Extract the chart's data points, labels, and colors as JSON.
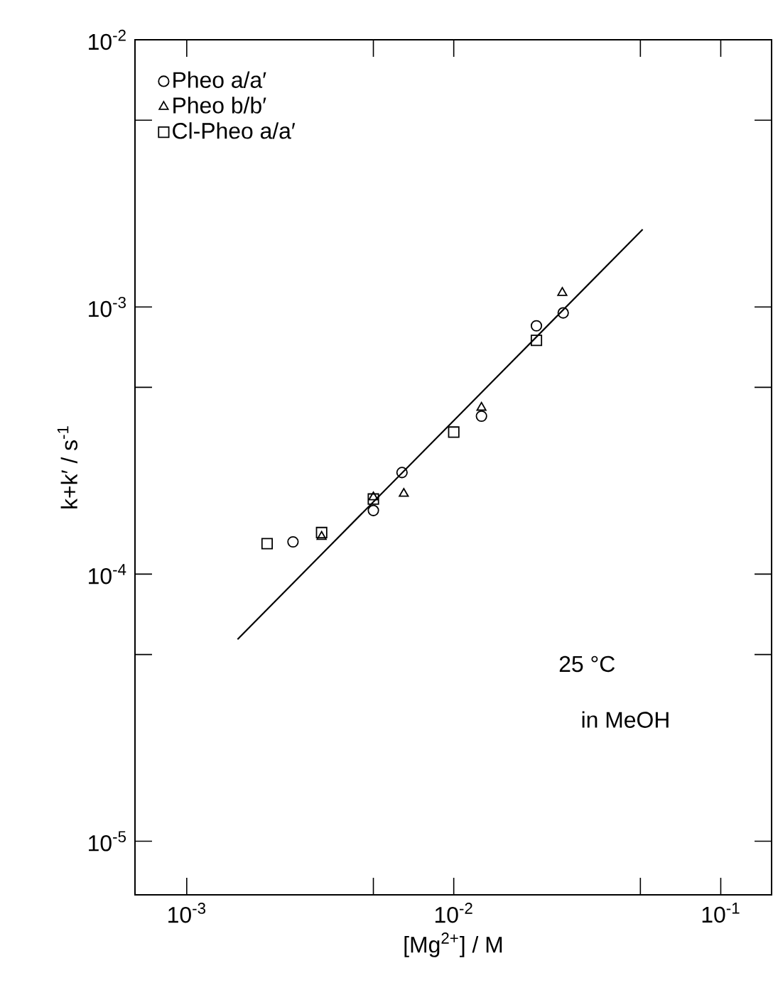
{
  "chart_data": {
    "type": "scatter",
    "xlabel": "[Mg$^{2+}$] / M",
    "ylabel": "k+k′ / s$^{-1}$",
    "log": "xy",
    "legend": "top left",
    "xlim": [
      0.00064,
      0.155
    ],
    "ylim": [
      6.3e-06,
      0.01
    ],
    "xticks": [
      {
        "value": 0.001,
        "label": "10$^{-3}$"
      },
      {
        "value": 0.005,
        "label": null
      },
      {
        "value": 0.01,
        "label": "10$^{-2}$"
      },
      {
        "value": 0.05,
        "label": null
      },
      {
        "value": 0.1,
        "label": "10$^{-1}$"
      }
    ],
    "yticks": [
      {
        "value": 1e-05,
        "label": "10$^{-5}$"
      },
      {
        "value": 5e-05,
        "label": null
      },
      {
        "value": 0.0001,
        "label": "10$^{-4}$"
      },
      {
        "value": 0.0005,
        "label": null
      },
      {
        "value": 0.001,
        "label": "10$^{-3}$"
      },
      {
        "value": 0.005,
        "label": null
      },
      {
        "value": 0.01,
        "label": "10$^{-2}$"
      }
    ],
    "series": [
      {
        "name": "Pheo a/a′",
        "color": "#000000",
        "marker": "circle",
        "x": [
          0.0025,
          0.005,
          0.0064,
          0.0127,
          0.0204,
          0.0257
        ],
        "values": [
          0.000132,
          0.000173,
          0.00024,
          0.00039,
          0.00085,
          0.00095
        ]
      },
      {
        "name": "Pheo b/b′",
        "color": "#000000",
        "marker": "triangle",
        "x": [
          0.0032,
          0.005,
          0.0065,
          0.0127,
          0.0255
        ],
        "values": [
          0.000138,
          0.000194,
          0.0002,
          0.00042,
          0.00113
        ]
      },
      {
        "name": "Cl-Pheo a/a′",
        "color": "#000000",
        "marker": "square",
        "x": [
          0.002,
          0.0032,
          0.005,
          0.01,
          0.0204
        ],
        "values": [
          0.00013,
          0.000143,
          0.000191,
          0.00034,
          0.00075
        ]
      },
      {
        "type": "line",
        "color": "#000000",
        "marker": "none",
        "line_style": "solid",
        "x": [
          0.00155,
          0.051
        ],
        "values": [
          5.7e-05,
          0.00195
        ]
      }
    ],
    "annotations": [
      "25 °C",
      "in MeOH"
    ]
  }
}
